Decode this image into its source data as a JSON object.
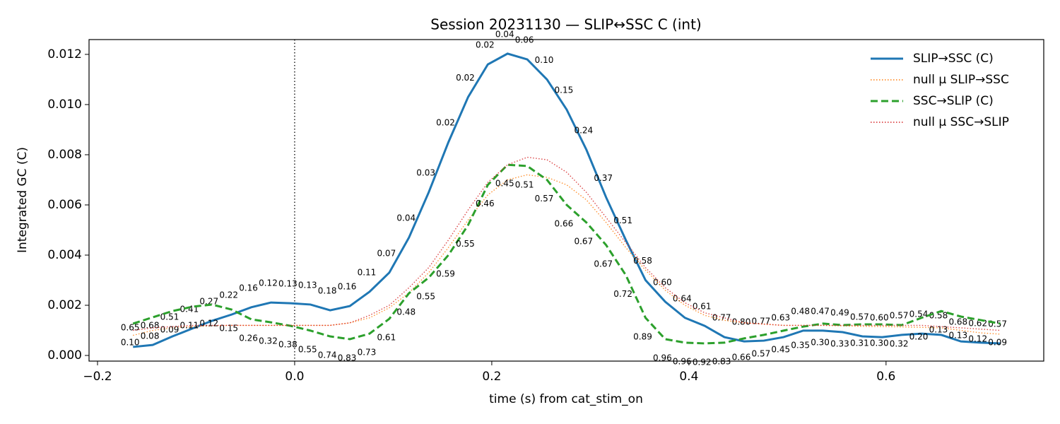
{
  "chart_data": {
    "type": "line",
    "title": "Session 20231130 — SLIP↔SSC C (int)",
    "x_label": "time (s) from cat_stim_on",
    "y_label": "Integrated GC (C)",
    "x": [
      -0.164,
      -0.144,
      -0.124,
      -0.104,
      -0.084,
      -0.064,
      -0.044,
      -0.024,
      -0.004,
      0.016,
      0.036,
      0.056,
      0.076,
      0.096,
      0.116,
      0.136,
      0.156,
      0.176,
      0.196,
      0.216,
      0.236,
      0.256,
      0.276,
      0.296,
      0.316,
      0.336,
      0.356,
      0.376,
      0.396,
      0.416,
      0.436,
      0.456,
      0.476,
      0.496,
      0.516,
      0.536,
      0.556,
      0.576,
      0.596,
      0.616,
      0.636,
      0.656,
      0.676,
      0.696,
      0.716
    ],
    "series": [
      {
        "name": "SLIP→SSC (C)",
        "color": "#1f77b4",
        "style": "solid",
        "values": [
          0.00034,
          0.00042,
          0.00076,
          0.00107,
          0.00138,
          0.00163,
          0.00192,
          0.00211,
          0.00208,
          0.00203,
          0.0018,
          0.00197,
          0.00254,
          0.0033,
          0.0047,
          0.0065,
          0.0085,
          0.0103,
          0.0116,
          0.01203,
          0.0118,
          0.011,
          0.0098,
          0.0082,
          0.0063,
          0.0046,
          0.003,
          0.00214,
          0.0015,
          0.00118,
          0.00073,
          0.00056,
          0.00059,
          0.00073,
          0.00099,
          0.00099,
          0.00093,
          0.00076,
          0.00073,
          0.00082,
          0.00087,
          0.00082,
          0.00056,
          0.00051,
          0.00048
        ],
        "p_labels": [
          "0.65",
          "0.68",
          "0.51",
          "0.41",
          "0.27",
          "0.22",
          "0.16",
          "0.12",
          "0.13",
          "0.13",
          "0.18",
          "0.16",
          "0.11",
          "0.07",
          "0.04",
          "0.03",
          "0.02",
          "0.02",
          "0.02",
          "0.04",
          "0.06",
          "0.10",
          "0.15",
          "0.24",
          "0.37",
          "0.51",
          "0.58",
          "0.60",
          "0.64",
          "0.61",
          "0.77",
          "0.80",
          "0.77",
          "0.63",
          "0.48",
          "0.47",
          "0.49",
          "0.57",
          "0.60",
          "0.57",
          "0.54",
          "0.58",
          "0.68",
          "0.62",
          "0.57"
        ]
      },
      {
        "name": "null μ SLIP→SSC",
        "color": "#ff7f0e",
        "style": "dotted",
        "values": [
          0.0008,
          0.001,
          0.0011,
          0.00115,
          0.00118,
          0.0012,
          0.0012,
          0.0012,
          0.0012,
          0.0012,
          0.0012,
          0.0013,
          0.0015,
          0.0019,
          0.0025,
          0.0033,
          0.0043,
          0.0054,
          0.0064,
          0.007,
          0.0072,
          0.0071,
          0.0068,
          0.0062,
          0.0053,
          0.0043,
          0.0034,
          0.0026,
          0.002,
          0.0016,
          0.0014,
          0.0013,
          0.00125,
          0.0012,
          0.0012,
          0.0012,
          0.00118,
          0.00116,
          0.00115,
          0.00114,
          0.00112,
          0.0011,
          0.001,
          0.0009,
          0.00085
        ]
      },
      {
        "name": "SSC→SLIP (C)",
        "color": "#2ca02c",
        "style": "dashed",
        "values": [
          0.00127,
          0.00152,
          0.00177,
          0.00194,
          0.00203,
          0.00183,
          0.00144,
          0.00132,
          0.00118,
          0.00099,
          0.00076,
          0.00065,
          0.00087,
          0.00146,
          0.00248,
          0.0031,
          0.004,
          0.0052,
          0.0068,
          0.0076,
          0.00755,
          0.007,
          0.006,
          0.0053,
          0.0044,
          0.0032,
          0.0015,
          0.00065,
          0.00051,
          0.00048,
          0.00051,
          0.00068,
          0.00082,
          0.00099,
          0.00115,
          0.00127,
          0.00121,
          0.00124,
          0.00124,
          0.00121,
          0.0015,
          0.00177,
          0.00155,
          0.00141,
          0.00127
        ],
        "p_labels": [
          "0.10",
          "0.08",
          "0.09",
          "0.11",
          "0.12",
          "0.15",
          "0.26",
          "0.32",
          "0.38",
          "0.55",
          "0.74",
          "0.83",
          "0.73",
          "0.61",
          "0.48",
          "0.55",
          "0.59",
          "0.55",
          "0.46",
          "0.45",
          "0.51",
          "0.57",
          "0.66",
          "0.67",
          "0.67",
          "0.72",
          "0.89",
          "0.96",
          "0.96",
          "0.92",
          "0.83",
          "0.66",
          "0.57",
          "0.45",
          "0.35",
          "0.30",
          "0.33",
          "0.31",
          "0.30",
          "0.32",
          "0.20",
          "0.13",
          "0.13",
          "0.12",
          "0.09"
        ]
      },
      {
        "name": "null μ SSC→SLIP",
        "color": "#d62728",
        "style": "dotted",
        "values": [
          0.001,
          0.0011,
          0.00115,
          0.0012,
          0.0012,
          0.0012,
          0.0012,
          0.0012,
          0.0012,
          0.0012,
          0.0012,
          0.0013,
          0.0016,
          0.002,
          0.0027,
          0.0035,
          0.0046,
          0.0058,
          0.0069,
          0.0076,
          0.0079,
          0.0078,
          0.0073,
          0.0065,
          0.0055,
          0.0045,
          0.0035,
          0.0027,
          0.0021,
          0.0017,
          0.0015,
          0.0013,
          0.00125,
          0.0012,
          0.0012,
          0.0012,
          0.0012,
          0.0012,
          0.0012,
          0.0012,
          0.0012,
          0.00115,
          0.0011,
          0.00105,
          0.001
        ]
      }
    ],
    "xlim": [
      -0.2086,
      0.76
    ],
    "ylim": [
      -0.000225,
      0.01259
    ],
    "xticks": [
      {
        "value": -0.2,
        "label": "−0.2"
      },
      {
        "value": 0,
        "label": "0.0"
      },
      0.2,
      0.4,
      0.6
    ],
    "yticks": [
      {
        "value": 0,
        "label": "0.000"
      },
      {
        "value": 0.002,
        "label": "0.002"
      },
      {
        "value": 0.004,
        "label": "0.004"
      },
      {
        "value": 0.006,
        "label": "0.006"
      },
      {
        "value": 0.008,
        "label": "0.008"
      },
      {
        "value": 0.01,
        "label": "0.010"
      },
      {
        "value": 0.012,
        "label": "0.012"
      }
    ],
    "vline": 0,
    "legend": "upper right",
    "grid": false
  }
}
